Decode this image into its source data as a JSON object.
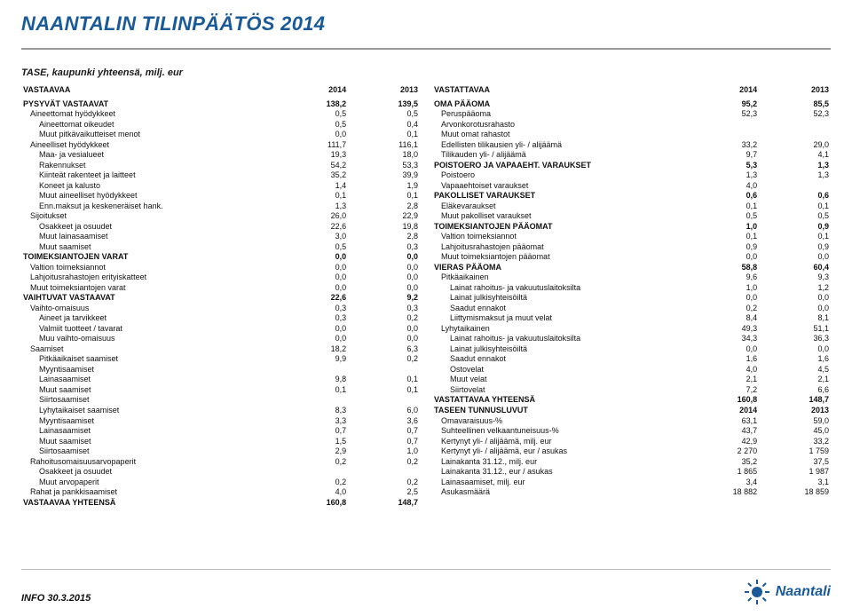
{
  "header": {
    "title": "NAANTALIN TILINPÄÄTÖS 2014",
    "subtitle": "TASE, kaupunki yhteensä, milj. eur"
  },
  "footer": {
    "info": "INFO 30.3.2015",
    "brand": "Naantali"
  },
  "left": {
    "header": {
      "label": "VASTAAVAA",
      "c1": "2014",
      "c2": "2013"
    },
    "rows": [
      {
        "cls": "bold",
        "label": "PYSYVÄT VASTAAVAT",
        "c1": "138,2",
        "c2": "139,5"
      },
      {
        "cls": "ind1",
        "label": "Aineettomat hyödykkeet",
        "c1": "0,5",
        "c2": "0,5"
      },
      {
        "cls": "ind2",
        "label": "Aineettomat oikeudet",
        "c1": "0,5",
        "c2": "0,4"
      },
      {
        "cls": "ind2",
        "label": "Muut pitkävaikutteiset menot",
        "c1": "0,0",
        "c2": "0,1"
      },
      {
        "cls": "ind1",
        "label": "Aineelliset hyödykkeet",
        "c1": "111,7",
        "c2": "116,1"
      },
      {
        "cls": "ind2",
        "label": "Maa- ja vesialueet",
        "c1": "19,3",
        "c2": "18,0"
      },
      {
        "cls": "ind2",
        "label": "Rakennukset",
        "c1": "54,2",
        "c2": "53,3"
      },
      {
        "cls": "ind2",
        "label": "Kiinteät rakenteet ja laitteet",
        "c1": "35,2",
        "c2": "39,9"
      },
      {
        "cls": "ind2",
        "label": "Koneet ja kalusto",
        "c1": "1,4",
        "c2": "1,9"
      },
      {
        "cls": "ind2",
        "label": "Muut aineelliset hyödykkeet",
        "c1": "0,1",
        "c2": "0,1"
      },
      {
        "cls": "ind2",
        "label": "Enn.maksut ja keskeneräiset hank.",
        "c1": "1,3",
        "c2": "2,8"
      },
      {
        "cls": "ind1",
        "label": "Sijoitukset",
        "c1": "26,0",
        "c2": "22,9"
      },
      {
        "cls": "ind2",
        "label": "Osakkeet ja osuudet",
        "c1": "22,6",
        "c2": "19,8"
      },
      {
        "cls": "ind2",
        "label": "Muut lainasaamiset",
        "c1": "3,0",
        "c2": "2,8"
      },
      {
        "cls": "ind2",
        "label": "Muut saamiset",
        "c1": "0,5",
        "c2": "0,3"
      },
      {
        "cls": "bold",
        "label": "TOIMEKSIANTOJEN VARAT",
        "c1": "0,0",
        "c2": "0,0"
      },
      {
        "cls": "ind1",
        "label": "Valtion toimeksiannot",
        "c1": "0,0",
        "c2": "0,0"
      },
      {
        "cls": "ind1",
        "label": "Lahjoitusrahastojen erityiskatteet",
        "c1": "0,0",
        "c2": "0,0"
      },
      {
        "cls": "ind1",
        "label": "Muut toimeksiantojen varat",
        "c1": "0,0",
        "c2": "0,0"
      },
      {
        "cls": "bold",
        "label": "VAIHTUVAT VASTAAVAT",
        "c1": "22,6",
        "c2": "9,2"
      },
      {
        "cls": "ind1",
        "label": "Vaihto-omaisuus",
        "c1": "0,3",
        "c2": "0,3"
      },
      {
        "cls": "ind2",
        "label": "Aineet ja tarvikkeet",
        "c1": "0,3",
        "c2": "0,2"
      },
      {
        "cls": "ind2",
        "label": "Valmiit tuotteet / tavarat",
        "c1": "0,0",
        "c2": "0,0"
      },
      {
        "cls": "ind2",
        "label": "Muu vaihto-omaisuus",
        "c1": "0,0",
        "c2": "0,0"
      },
      {
        "cls": "ind1",
        "label": "Saamiset",
        "c1": "18,2",
        "c2": "6,3"
      },
      {
        "cls": "ind2",
        "label": "Pitkäaikaiset saamiset",
        "c1": "9,9",
        "c2": "0,2"
      },
      {
        "cls": "ind2",
        "label": "Myyntisaamiset",
        "c1": "",
        "c2": ""
      },
      {
        "cls": "ind2",
        "label": "Lainasaamiset",
        "c1": "9,8",
        "c2": "0,1"
      },
      {
        "cls": "ind2",
        "label": "Muut saamiset",
        "c1": "0,1",
        "c2": "0,1"
      },
      {
        "cls": "ind2",
        "label": "Siirtosaamiset",
        "c1": "",
        "c2": ""
      },
      {
        "cls": "ind2",
        "label": "Lyhytaikaiset saamiset",
        "c1": "8,3",
        "c2": "6,0"
      },
      {
        "cls": "ind2",
        "label": "Myyntisaamiset",
        "c1": "3,3",
        "c2": "3,6"
      },
      {
        "cls": "ind2",
        "label": "Lainasaamiset",
        "c1": "0,7",
        "c2": "0,7"
      },
      {
        "cls": "ind2",
        "label": "Muut saamiset",
        "c1": "1,5",
        "c2": "0,7"
      },
      {
        "cls": "ind2",
        "label": "Siirtosaamiset",
        "c1": "2,9",
        "c2": "1,0"
      },
      {
        "cls": "ind1",
        "label": "Rahoitusomaisuusarvopaperit",
        "c1": "0,2",
        "c2": "0,2"
      },
      {
        "cls": "ind2",
        "label": "Osakkeet ja osuudet",
        "c1": "",
        "c2": ""
      },
      {
        "cls": "ind2",
        "label": "Muut arvopaperit",
        "c1": "0,2",
        "c2": "0,2"
      },
      {
        "cls": "ind1",
        "label": "Rahat ja pankkisaamiset",
        "c1": "4,0",
        "c2": "2,5"
      },
      {
        "cls": "bold",
        "label": "VASTAAVAA YHTEENSÄ",
        "c1": "160,8",
        "c2": "148,7"
      }
    ]
  },
  "right": {
    "header": {
      "label": "VASTATTAVAA",
      "c1": "2014",
      "c2": "2013"
    },
    "rows": [
      {
        "cls": "bold",
        "label": "OMA PÄÄOMA",
        "c1": "95,2",
        "c2": "85,5"
      },
      {
        "cls": "ind1",
        "label": "Peruspääoma",
        "c1": "52,3",
        "c2": "52,3"
      },
      {
        "cls": "ind1",
        "label": "Arvonkorotusrahasto",
        "c1": "",
        "c2": ""
      },
      {
        "cls": "ind1",
        "label": "Muut omat rahastot",
        "c1": "",
        "c2": ""
      },
      {
        "cls": "ind1",
        "label": "Edellisten tilikausien yli- / alijäämä",
        "c1": "33,2",
        "c2": "29,0"
      },
      {
        "cls": "ind1",
        "label": "Tilikauden yli- / alijäämä",
        "c1": "9,7",
        "c2": "4,1"
      },
      {
        "cls": "bold",
        "label": "POISTOERO JA VAPAAEHT. VARAUKSET",
        "c1": "5,3",
        "c2": "1,3"
      },
      {
        "cls": "ind1",
        "label": "Poistoero",
        "c1": "1,3",
        "c2": "1,3"
      },
      {
        "cls": "ind1",
        "label": "Vapaaehtoiset varaukset",
        "c1": "4,0",
        "c2": ""
      },
      {
        "cls": "bold",
        "label": "PAKOLLISET VARAUKSET",
        "c1": "0,6",
        "c2": "0,6"
      },
      {
        "cls": "ind1",
        "label": "Eläkevaraukset",
        "c1": "0,1",
        "c2": "0,1"
      },
      {
        "cls": "ind1",
        "label": "Muut pakolliset varaukset",
        "c1": "0,5",
        "c2": "0,5"
      },
      {
        "cls": "bold",
        "label": "TOIMEKSIANTOJEN PÄÄOMAT",
        "c1": "1,0",
        "c2": "0,9"
      },
      {
        "cls": "ind1",
        "label": "Valtion toimeksiannot",
        "c1": "0,1",
        "c2": "0,1"
      },
      {
        "cls": "ind1",
        "label": "Lahjoitusrahastojen pääomat",
        "c1": "0,9",
        "c2": "0,9"
      },
      {
        "cls": "ind1",
        "label": "Muut toimeksiantojen pääomat",
        "c1": "0,0",
        "c2": "0,0"
      },
      {
        "cls": "bold",
        "label": "VIERAS PÄÄOMA",
        "c1": "58,8",
        "c2": "60,4"
      },
      {
        "cls": "ind1",
        "label": "Pitkäaikainen",
        "c1": "9,6",
        "c2": "9,3"
      },
      {
        "cls": "ind2",
        "label": "Lainat rahoitus- ja vakuutuslaitoksilta",
        "c1": "1,0",
        "c2": "1,2"
      },
      {
        "cls": "ind2",
        "label": "Lainat julkisyhteisöiltä",
        "c1": "0,0",
        "c2": "0,0"
      },
      {
        "cls": "ind2",
        "label": "Saadut ennakot",
        "c1": "0,2",
        "c2": "0,0"
      },
      {
        "cls": "ind2",
        "label": "Liittymismaksut ja muut velat",
        "c1": "8,4",
        "c2": "8,1"
      },
      {
        "cls": "ind1",
        "label": "Lyhytaikainen",
        "c1": "49,3",
        "c2": "51,1"
      },
      {
        "cls": "ind2",
        "label": "Lainat rahoitus- ja vakuutuslaitoksilta",
        "c1": "34,3",
        "c2": "36,3"
      },
      {
        "cls": "ind2",
        "label": "Lainat julkisyhteisöiltä",
        "c1": "0,0",
        "c2": "0,0"
      },
      {
        "cls": "ind2",
        "label": "Saadut ennakot",
        "c1": "1,6",
        "c2": "1,6"
      },
      {
        "cls": "ind2",
        "label": "Ostovelat",
        "c1": "4,0",
        "c2": "4,5"
      },
      {
        "cls": "ind2",
        "label": "Muut velat",
        "c1": "2,1",
        "c2": "2,1"
      },
      {
        "cls": "ind2",
        "label": "Siirtovelat",
        "c1": "7,2",
        "c2": "6,6"
      },
      {
        "cls": "bold",
        "label": "VASTATTAVAA YHTEENSÄ",
        "c1": "160,8",
        "c2": "148,7"
      },
      {
        "cls": "",
        "label": " ",
        "c1": "",
        "c2": ""
      },
      {
        "cls": "bold",
        "label": "TASEEN TUNNUSLUVUT",
        "c1": "2014",
        "c2": "2013"
      },
      {
        "cls": "ind1",
        "label": "Omavaraisuus-%",
        "c1": "63,1",
        "c2": "59,0"
      },
      {
        "cls": "ind1",
        "label": "Suhteellinen velkaantuneisuus-%",
        "c1": "43,7",
        "c2": "45,0"
      },
      {
        "cls": "ind1",
        "label": "Kertynyt yli- / alijäämä, milj. eur",
        "c1": "42,9",
        "c2": "33,2"
      },
      {
        "cls": "ind1",
        "label": "Kertynyt yli- / alijäämä, eur / asukas",
        "c1": "2 270",
        "c2": "1 759"
      },
      {
        "cls": "ind1",
        "label": "Lainakanta 31.12., milj. eur",
        "c1": "35,2",
        "c2": "37,5"
      },
      {
        "cls": "ind1",
        "label": "Lainakanta 31.12., eur / asukas",
        "c1": "1 865",
        "c2": "1 987"
      },
      {
        "cls": "ind1",
        "label": "Lainasaamiset, milj. eur",
        "c1": "3,4",
        "c2": "3,1"
      },
      {
        "cls": "ind1",
        "label": "Asukasmäärä",
        "c1": "18 882",
        "c2": "18 859"
      }
    ]
  }
}
